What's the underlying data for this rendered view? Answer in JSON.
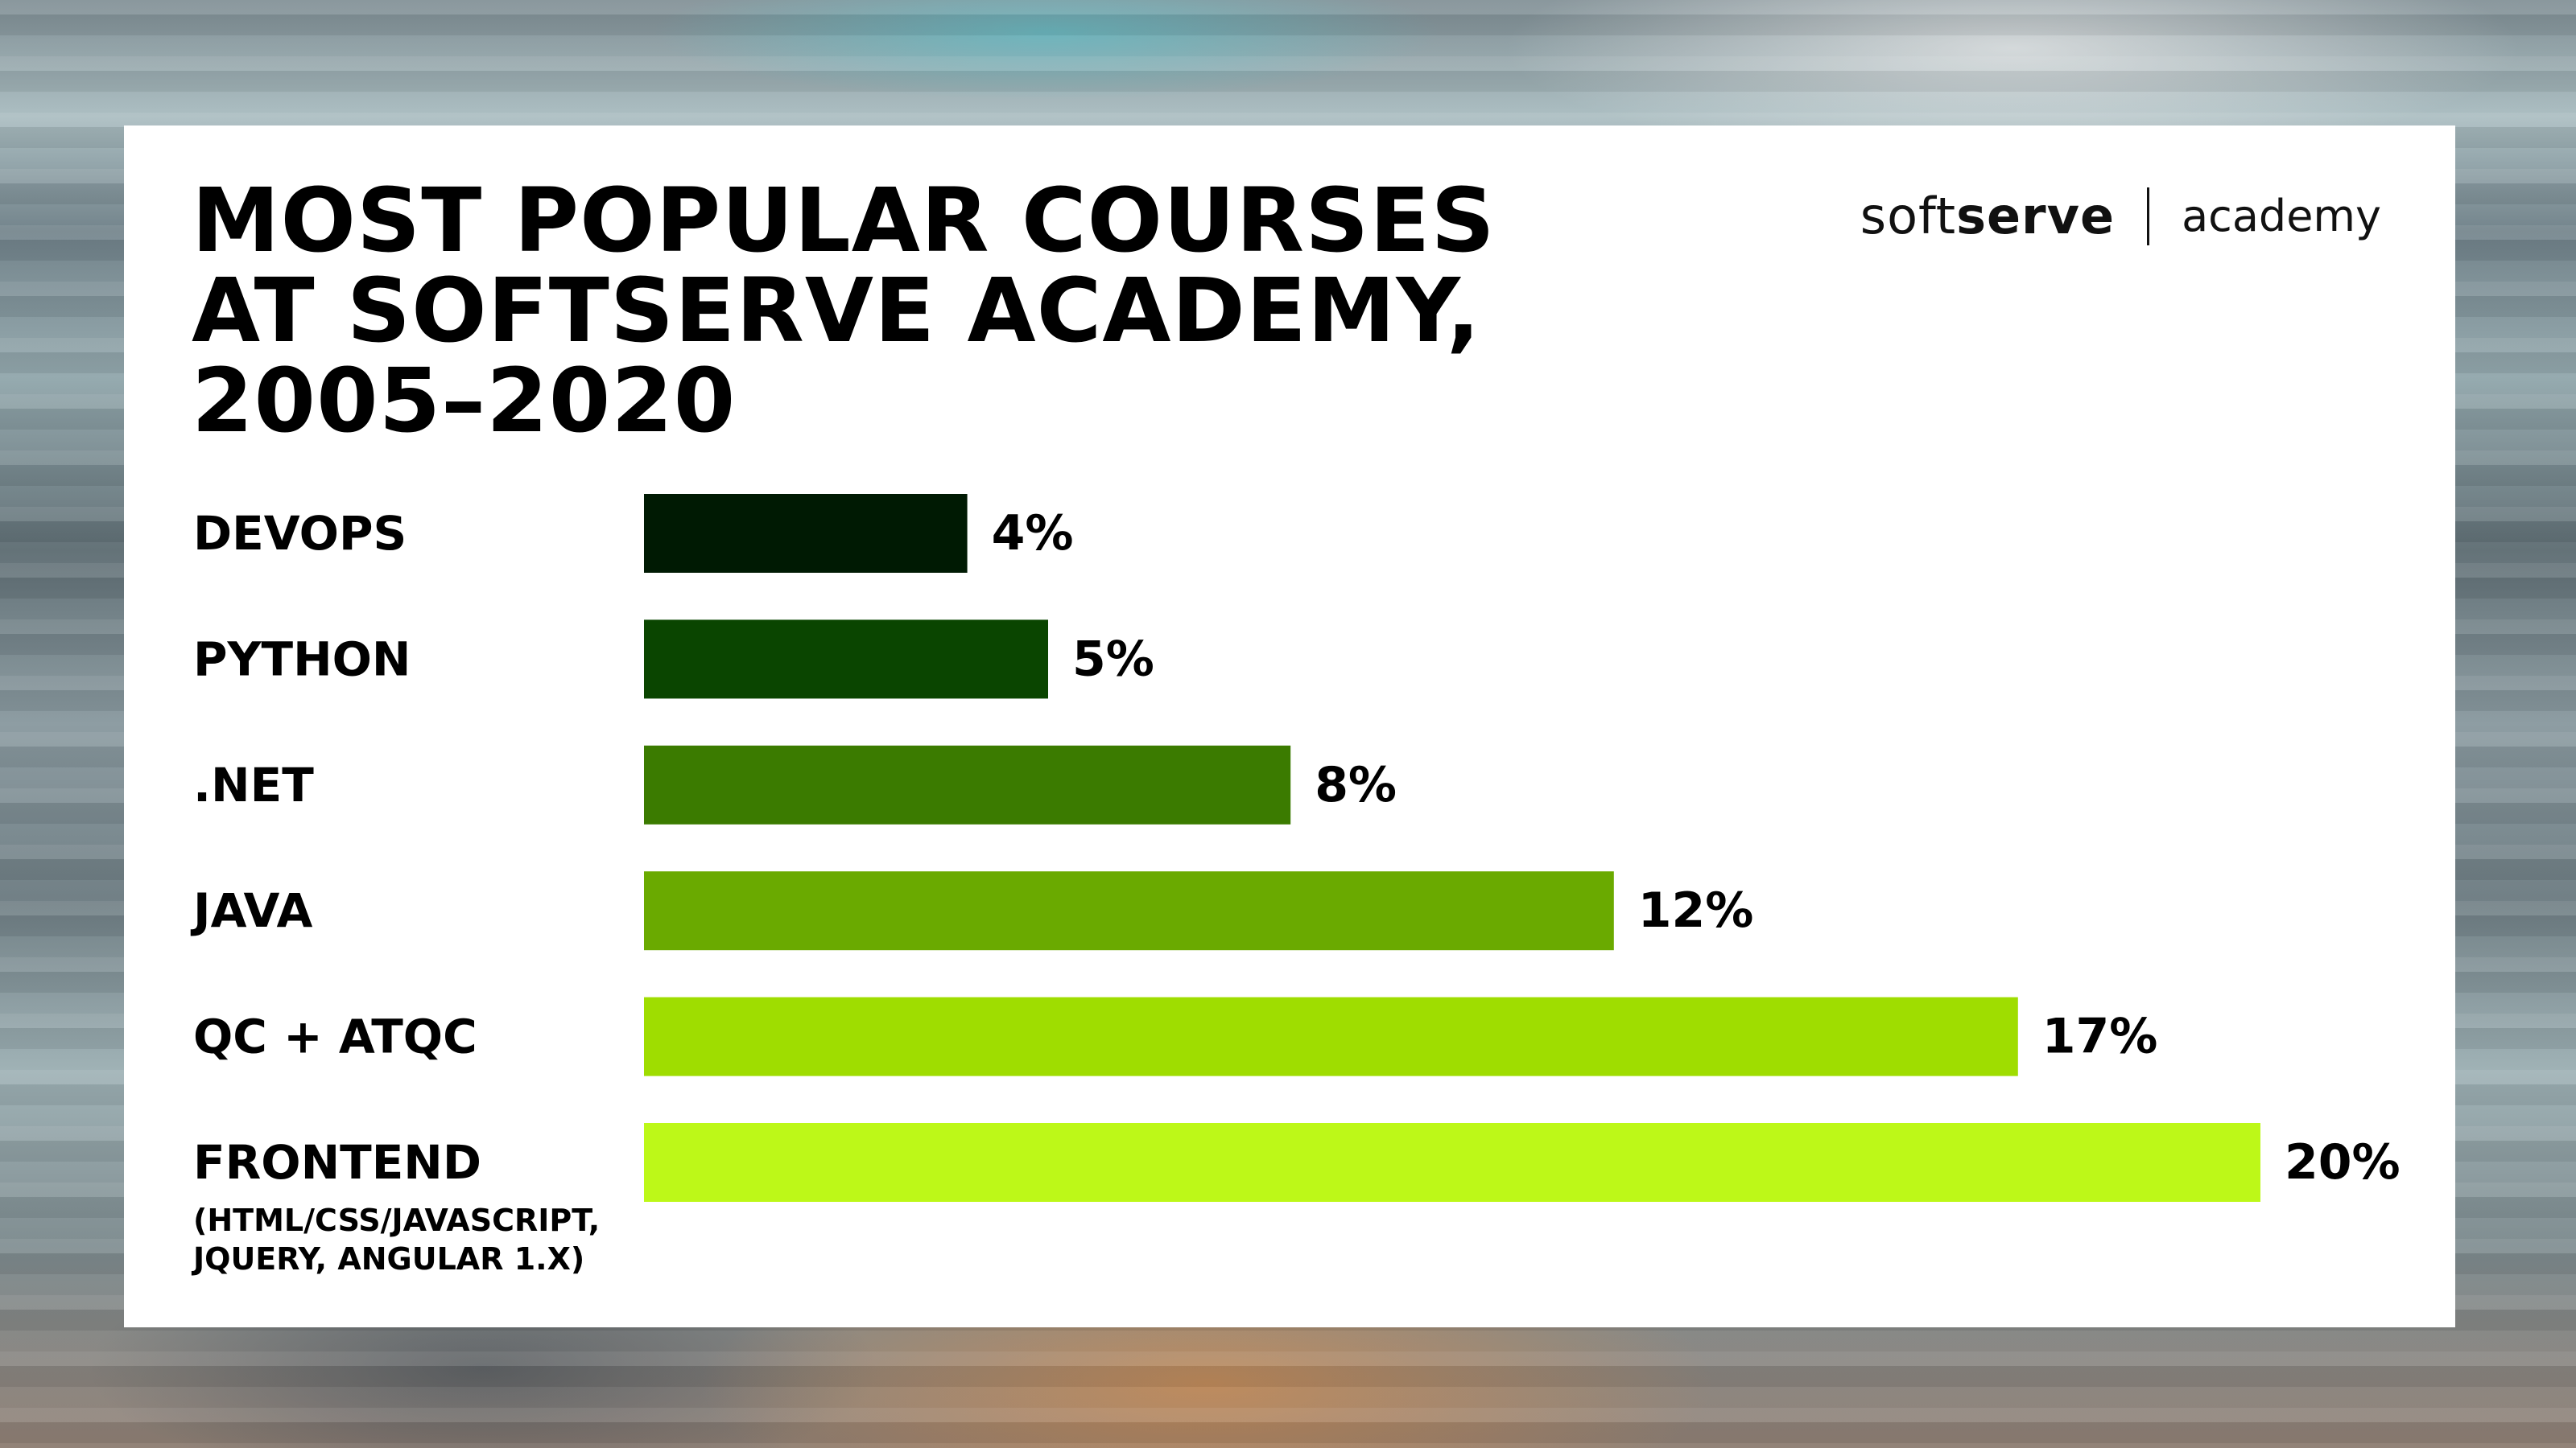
{
  "chart_data": {
    "type": "bar",
    "orientation": "horizontal",
    "title_lines": [
      "MOST POPULAR COURSES",
      "AT SOFTSERVE ACADEMY,",
      "2005–2020"
    ],
    "categories": [
      {
        "label": "DEVOPS",
        "sublabel": []
      },
      {
        "label": "PYTHON",
        "sublabel": []
      },
      {
        "label": ".NET",
        "sublabel": []
      },
      {
        "label": "JAVA",
        "sublabel": []
      },
      {
        "label": "QC + ATQC",
        "sublabel": []
      },
      {
        "label": "FRONTEND",
        "sublabel": [
          "(HTML/CSS/JAVASCRIPT,",
          "JQUERY, ANGULAR 1.X)"
        ]
      }
    ],
    "values": [
      4,
      5,
      8,
      12,
      17,
      20
    ],
    "value_labels": [
      "4%",
      "5%",
      "8%",
      "12%",
      "17%",
      "20%"
    ],
    "colors": [
      "#001a03",
      "#0a4500",
      "#3b7b00",
      "#6aaa00",
      "#9fdd00",
      "#bdf818"
    ],
    "xlim": [
      0,
      20
    ],
    "grid": false,
    "legend": "none"
  },
  "logo": {
    "soft": "soft",
    "serve": "serve",
    "academy": "academy"
  }
}
